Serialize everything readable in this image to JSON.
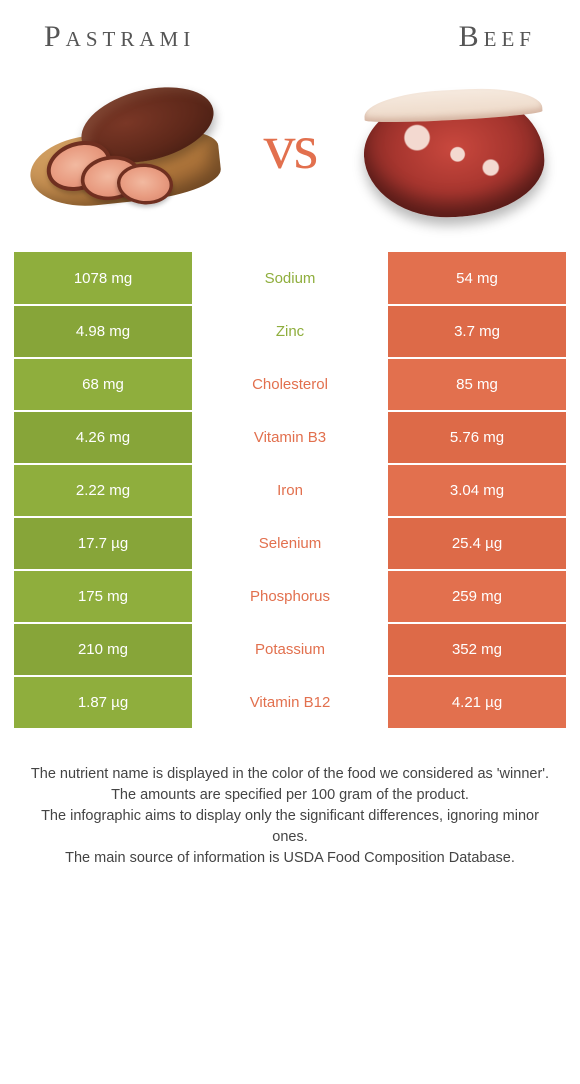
{
  "colors": {
    "pastrami": "#8fae3d",
    "beef": "#e2704e",
    "pastrami_alt": "#87a539",
    "beef_alt": "#dd6a48"
  },
  "header": {
    "left_title": "Pastrami",
    "right_title": "Beef",
    "vs": "vs"
  },
  "rows": [
    {
      "nutrient": "Sodium",
      "left": "1078 mg",
      "right": "54 mg",
      "winner": "left"
    },
    {
      "nutrient": "Zinc",
      "left": "4.98 mg",
      "right": "3.7 mg",
      "winner": "left"
    },
    {
      "nutrient": "Cholesterol",
      "left": "68 mg",
      "right": "85 mg",
      "winner": "right"
    },
    {
      "nutrient": "Vitamin B3",
      "left": "4.26 mg",
      "right": "5.76 mg",
      "winner": "right"
    },
    {
      "nutrient": "Iron",
      "left": "2.22 mg",
      "right": "3.04 mg",
      "winner": "right"
    },
    {
      "nutrient": "Selenium",
      "left": "17.7 µg",
      "right": "25.4 µg",
      "winner": "right"
    },
    {
      "nutrient": "Phosphorus",
      "left": "175 mg",
      "right": "259 mg",
      "winner": "right"
    },
    {
      "nutrient": "Potassium",
      "left": "210 mg",
      "right": "352 mg",
      "winner": "right"
    },
    {
      "nutrient": "Vitamin B12",
      "left": "1.87 µg",
      "right": "4.21 µg",
      "winner": "right"
    }
  ],
  "footer": {
    "l1": "The nutrient name is displayed in the color of the food we considered as 'winner'.",
    "l2": "The amounts are specified per 100 gram of the product.",
    "l3": "The infographic aims to display only the significant differences, ignoring minor ones.",
    "l4": "The main source of information is USDA Food Composition Database."
  }
}
